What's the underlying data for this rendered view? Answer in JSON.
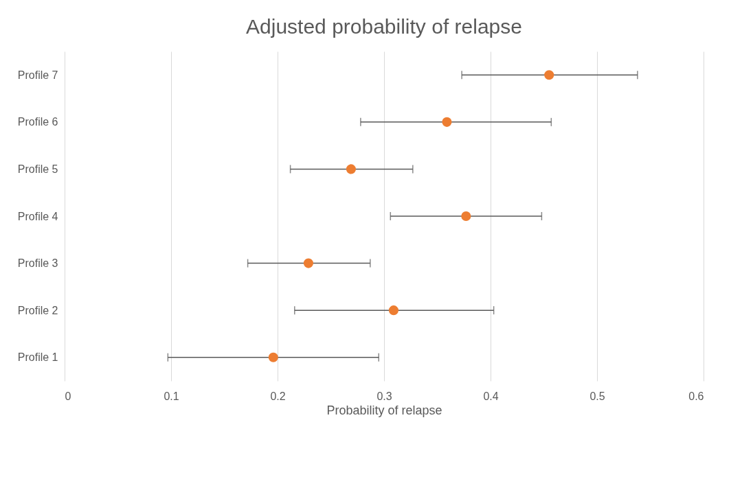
{
  "chart_data": {
    "type": "scatter",
    "orientation": "horizontal",
    "title": "Adjusted probability of relapse",
    "xlabel": "Probability of relapse",
    "categories": [
      "Profile 7",
      "Profile 6",
      "Profile 5",
      "Profile 4",
      "Profile 3",
      "Profile 2",
      "Profile 1"
    ],
    "values": [
      0.455,
      0.359,
      0.269,
      0.377,
      0.229,
      0.309,
      0.196
    ],
    "errors": [
      [
        0.373,
        0.538
      ],
      [
        0.278,
        0.457
      ],
      [
        0.212,
        0.327
      ],
      [
        0.306,
        0.448
      ],
      [
        0.172,
        0.287
      ],
      [
        0.216,
        0.403
      ],
      [
        0.097,
        0.295
      ]
    ],
    "color": "#ed7d31",
    "xlim": [
      0,
      0.6
    ],
    "xticks": [
      0,
      0.1,
      0.2,
      0.3,
      0.4,
      0.5,
      0.6
    ],
    "grid": "x",
    "marker": "circle"
  }
}
